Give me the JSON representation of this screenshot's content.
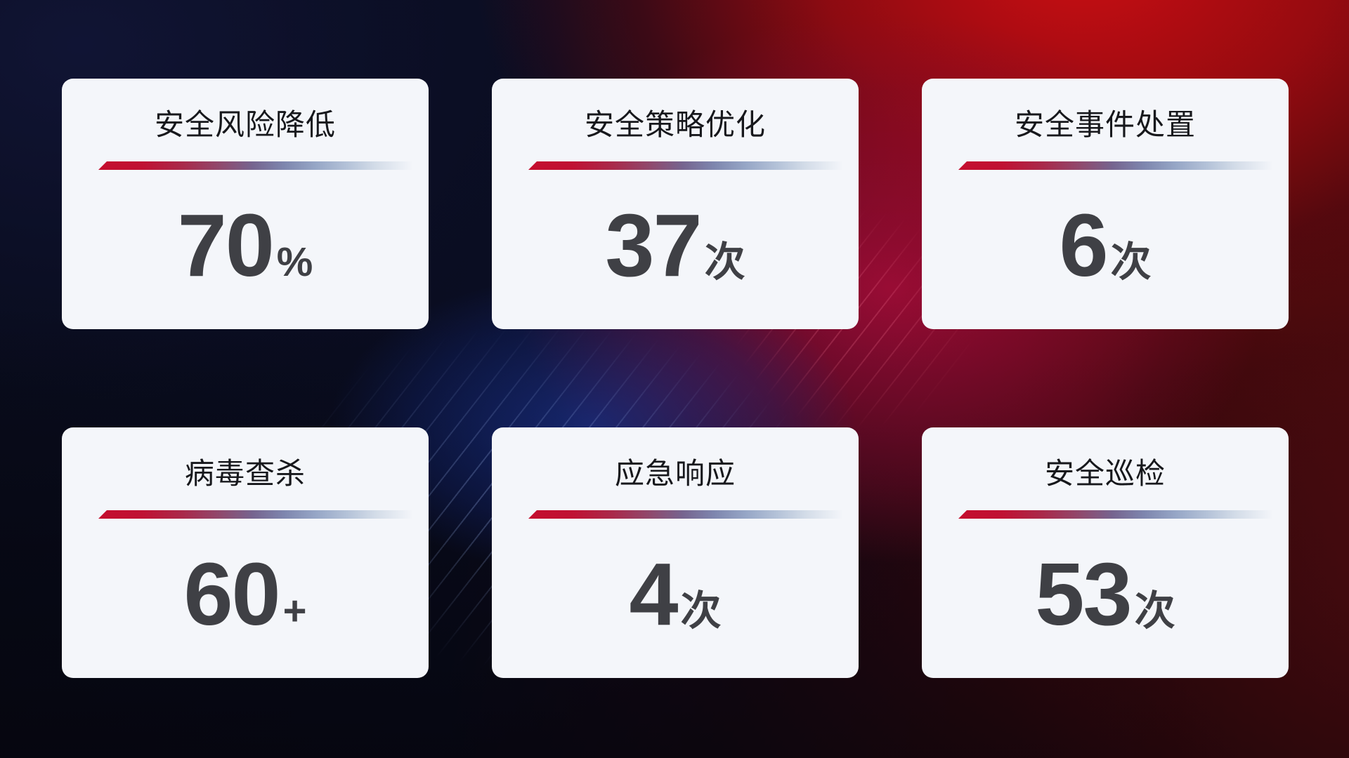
{
  "cards": [
    {
      "title": "安全风险降低",
      "value": "70",
      "unit": "%"
    },
    {
      "title": "安全策略优化",
      "value": "37",
      "unit": "次"
    },
    {
      "title": "安全事件处置",
      "value": "6",
      "unit": "次"
    },
    {
      "title": "病毒查杀",
      "value": "60",
      "unit": "+"
    },
    {
      "title": "应急响应",
      "value": "4",
      "unit": "次"
    },
    {
      "title": "安全巡检",
      "value": "53",
      "unit": "次"
    }
  ],
  "theme": {
    "card_background": "#f4f6fa",
    "title_color": "#17181c",
    "value_color": "#3f4045",
    "divider_gradient_start": "#c40e2e",
    "divider_gradient_mid": "#7e86ae",
    "divider_gradient_end": "#e9eef4",
    "background_dark_navy": "#0a0d22",
    "background_bright_red": "#ce0e13",
    "background_crimson": "#b20c3e",
    "background_blue_beam": "#1c3aa5",
    "background_dark_maroon": "#4a0b0f"
  }
}
